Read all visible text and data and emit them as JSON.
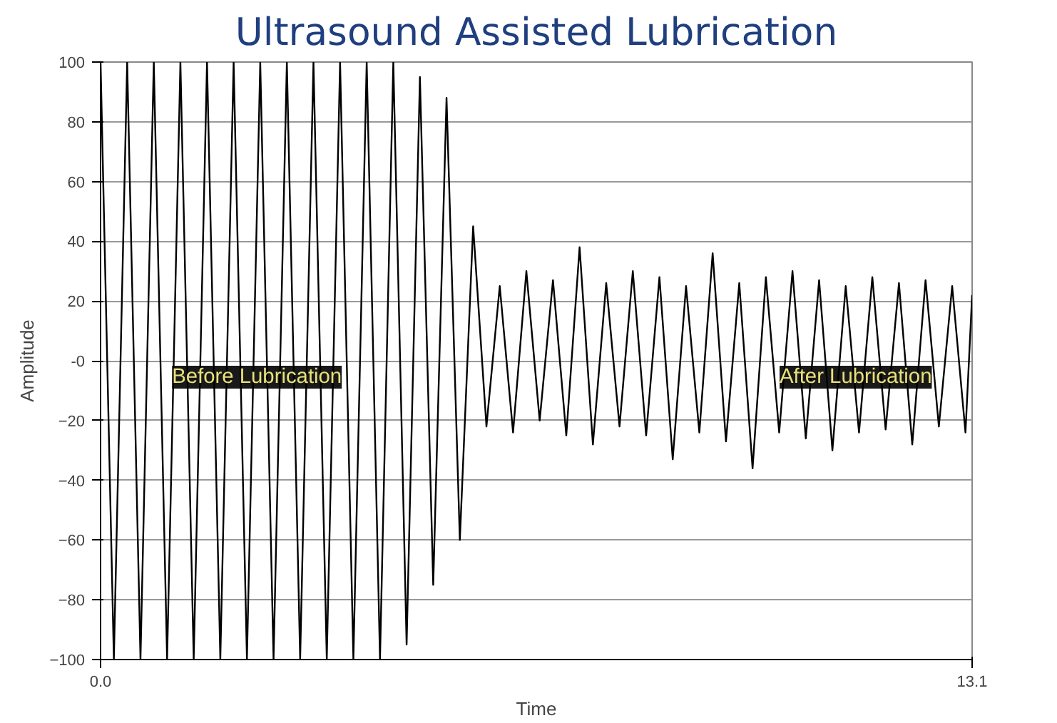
{
  "chart_data": {
    "type": "line",
    "title": "Ultrasound Assisted Lubrication",
    "xlabel": "Time",
    "ylabel": "Amplitude",
    "x": [
      0,
      0.2,
      0.4,
      0.6,
      0.8,
      1.0,
      1.2,
      1.4,
      1.6,
      1.8,
      2.0,
      2.2,
      2.4,
      2.6,
      2.8,
      3.0,
      3.2,
      3.4,
      3.6,
      3.8,
      4.0,
      4.2,
      4.4,
      4.6,
      4.8,
      5.0,
      5.2,
      5.4,
      5.6,
      5.8,
      6.0,
      6.2,
      6.4,
      6.6,
      6.8,
      7.0,
      7.2,
      7.4,
      7.6,
      7.8,
      8.0,
      8.2,
      8.4,
      8.6,
      8.8,
      9.0,
      9.2,
      9.4,
      9.6,
      9.8,
      10.0,
      10.2,
      10.4,
      10.6,
      10.8,
      11.0,
      11.2,
      11.4,
      11.6,
      11.8,
      12.0,
      12.2,
      12.4,
      12.6,
      12.8,
      13.0,
      13.1
    ],
    "series": [
      {
        "color": "#000000",
        "values": [
          100,
          -100,
          100,
          -100,
          100,
          -100,
          100,
          -100,
          100,
          -100,
          100,
          -100,
          100,
          -100,
          100,
          -100,
          100,
          -100,
          100,
          -100,
          100,
          -100,
          100,
          -95,
          95,
          -75,
          88,
          -60,
          45,
          -22,
          25,
          -24,
          30,
          -20,
          27,
          -25,
          38,
          -28,
          26,
          -22,
          30,
          -25,
          28,
          -33,
          25,
          -24,
          36,
          -27,
          26,
          -36,
          28,
          -24,
          30,
          -26,
          27,
          -30,
          25,
          -24,
          28,
          -23,
          26,
          -28,
          27,
          -22,
          25,
          -24,
          22
        ]
      }
    ],
    "xlim": [
      0,
      13.1
    ],
    "ylim": [
      -100,
      100
    ],
    "xticks": [
      {
        "value": 0,
        "label": "0.0"
      },
      13.1
    ],
    "yticks": [
      100,
      80,
      60,
      40,
      20,
      {
        "value": 0,
        "label": "-0"
      },
      -20,
      -40,
      -60,
      -80,
      -100
    ],
    "grid": true,
    "line_style": "solid",
    "marker": "none",
    "annotations": [
      {
        "text": "Before Lubrication",
        "x": 2.35,
        "y": -5.5
      },
      {
        "text": "After Lubrication",
        "x": 11.35,
        "y": -5.5
      }
    ]
  }
}
